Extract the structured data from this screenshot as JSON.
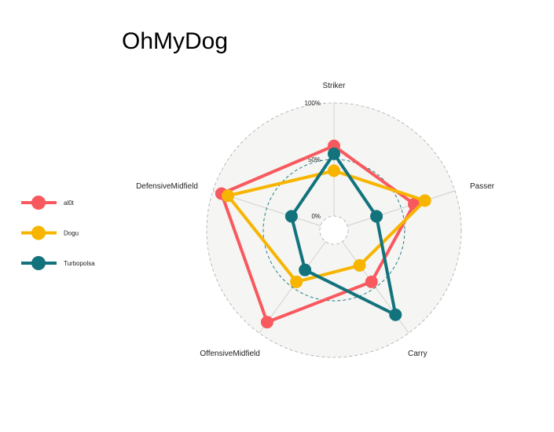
{
  "chart_data": {
    "type": "radar",
    "title": "OhMyDog",
    "axes": [
      "Striker",
      "Passer",
      "Carry",
      "OffensiveMidfield",
      "DefensiveMidfield"
    ],
    "grid_labels": [
      "0%",
      "50%",
      "100%"
    ],
    "range": [
      0,
      100
    ],
    "grid_values": [
      0,
      50,
      100
    ],
    "series": [
      {
        "name": "al0t",
        "color": "#F8595E",
        "values": [
          62,
          62,
          44,
          88,
          92
        ]
      },
      {
        "name": "Dogu",
        "color": "#F7B500",
        "values": [
          40,
          72,
          26,
          44,
          86
        ]
      },
      {
        "name": "Turbopolsa",
        "color": "#12737D",
        "values": [
          55,
          27,
          80,
          31,
          27
        ]
      }
    ],
    "legend_position": "left"
  }
}
